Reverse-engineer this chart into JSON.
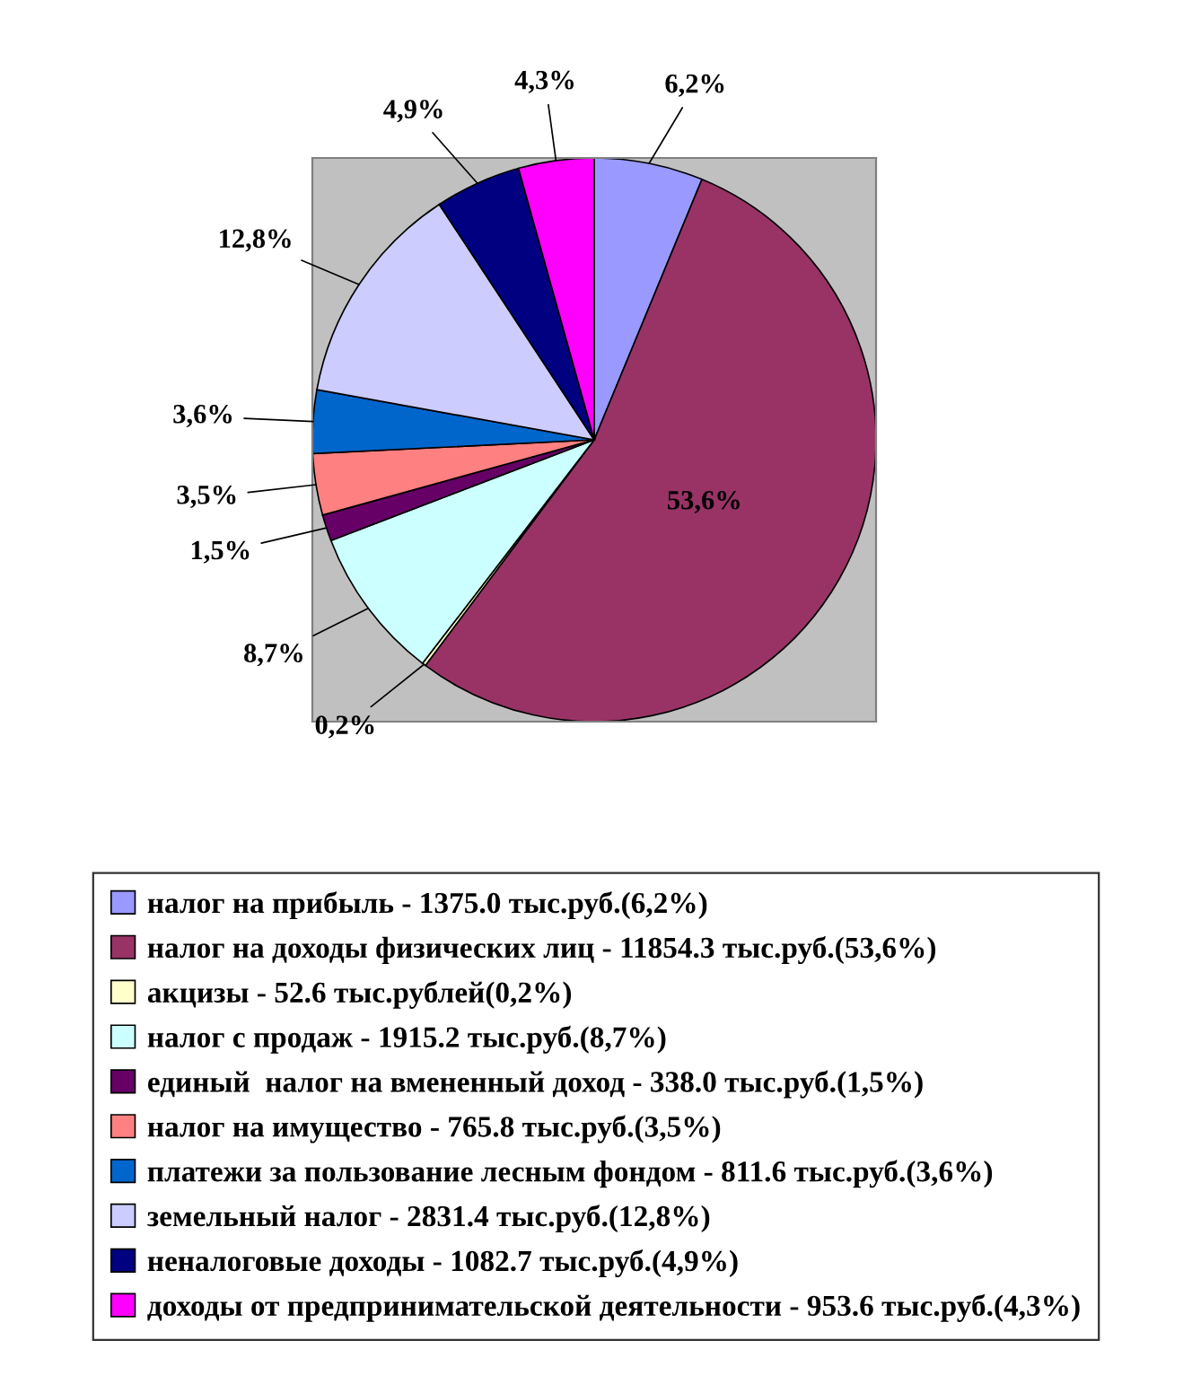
{
  "chart_data": {
    "type": "pie",
    "categories": [
      "налог на прибыль - 1375.0 тыс.руб.(6,2%)",
      "налог на доходы физических лиц - 11854.3 тыс.руб.(53,6%)",
      "акцизы - 52.6 тыс.рублей(0,2%)",
      "налог с продаж - 1915.2 тыс.руб.(8,7%)",
      "единый  налог на вмененный доход - 338.0 тыс.руб.(1,5%)",
      "налог на имущество - 765.8 тыс.руб.(3,5%)",
      "платежи за пользование лесным фондом - 811.6 тыс.руб.(3,6%)",
      "земельный налог - 2831.4 тыс.руб.(12,8%)",
      "неналоговые доходы - 1082.7 тыс.руб.(4,9%)",
      "доходы от предпринимательской деятельности - 953.6 тыс.руб.(4,3%)"
    ],
    "values": [
      6.2,
      53.6,
      0.2,
      8.7,
      1.5,
      3.5,
      3.6,
      12.8,
      4.9,
      4.3
    ],
    "colors": [
      "#9999ff",
      "#993366",
      "#ffffcc",
      "#ccffff",
      "#660066",
      "#ff8080",
      "#0066cc",
      "#ccccff",
      "#000080",
      "#ff00ff"
    ],
    "value_labels": [
      "6,2%",
      "53,6%",
      "0,2%",
      "8,7%",
      "1,5%",
      "3,5%",
      "3,6%",
      "12,8%",
      "4,9%",
      "4,3%"
    ],
    "legend": "bottom"
  }
}
